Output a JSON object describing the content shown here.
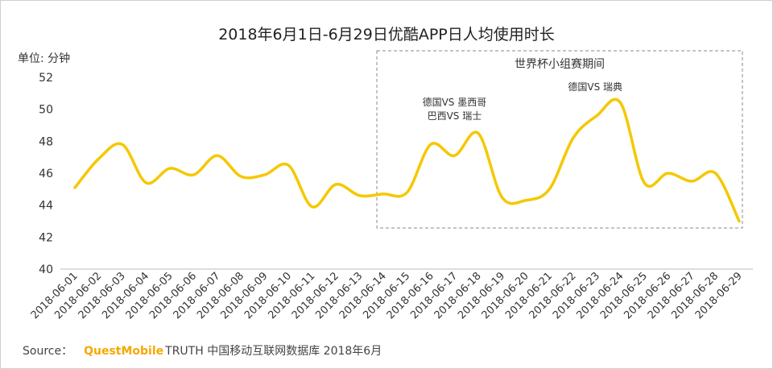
{
  "header": {
    "title": "2018年6月1日-6月29日优酷APP日人均使用时长",
    "unit": "单位: 分钟"
  },
  "source": {
    "prefix": "Source：",
    "brand": "QuestMobile",
    "rest": "TRUTH 中国移动互联网数据库 2018年6月"
  },
  "colors": {
    "line": "#F5C800",
    "box": "#888888",
    "baseline": "#bbbbbb"
  },
  "chart_data": {
    "type": "line",
    "title": "2018年6月1日-6月29日优酷APP日人均使用时长",
    "ylabel": "单位: 分钟",
    "ylim": [
      40,
      52
    ],
    "yticks": [
      40,
      42,
      44,
      46,
      48,
      50,
      52
    ],
    "grid": false,
    "categories": [
      "2018-06-01",
      "2018-06-02",
      "2018-06-03",
      "2018-06-04",
      "2018-06-05",
      "2018-06-06",
      "2018-06-07",
      "2018-06-08",
      "2018-06-09",
      "2018-06-10",
      "2018-06-11",
      "2018-06-12",
      "2018-06-13",
      "2018-06-14",
      "2018-06-15",
      "2018-06-16",
      "2018-06-17",
      "2018-06-18",
      "2018-06-19",
      "2018-06-20",
      "2018-06-21",
      "2018-06-22",
      "2018-06-23",
      "2018-06-24",
      "2018-06-25",
      "2018-06-26",
      "2018-06-27",
      "2018-06-28",
      "2018-06-29"
    ],
    "series": [
      {
        "name": "",
        "values": [
          45.1,
          46.9,
          47.8,
          45.4,
          46.3,
          45.9,
          47.1,
          45.8,
          45.9,
          46.5,
          43.9,
          45.3,
          44.6,
          44.7,
          44.8,
          47.8,
          47.1,
          48.5,
          44.5,
          44.3,
          45.0,
          48.2,
          49.6,
          50.4,
          45.4,
          46.0,
          45.5,
          46.0,
          43.0
        ]
      }
    ],
    "highlight_box": {
      "label": "世界杯小组赛期间",
      "from": "2018-06-14",
      "to": "2018-06-29"
    },
    "annotations": [
      {
        "lines": [
          "德国VS 墨西哥",
          "巴西VS 瑞士"
        ],
        "at": "2018-06-17"
      },
      {
        "lines": [
          "德国VS 瑞典"
        ],
        "at": "2018-06-23"
      }
    ]
  }
}
